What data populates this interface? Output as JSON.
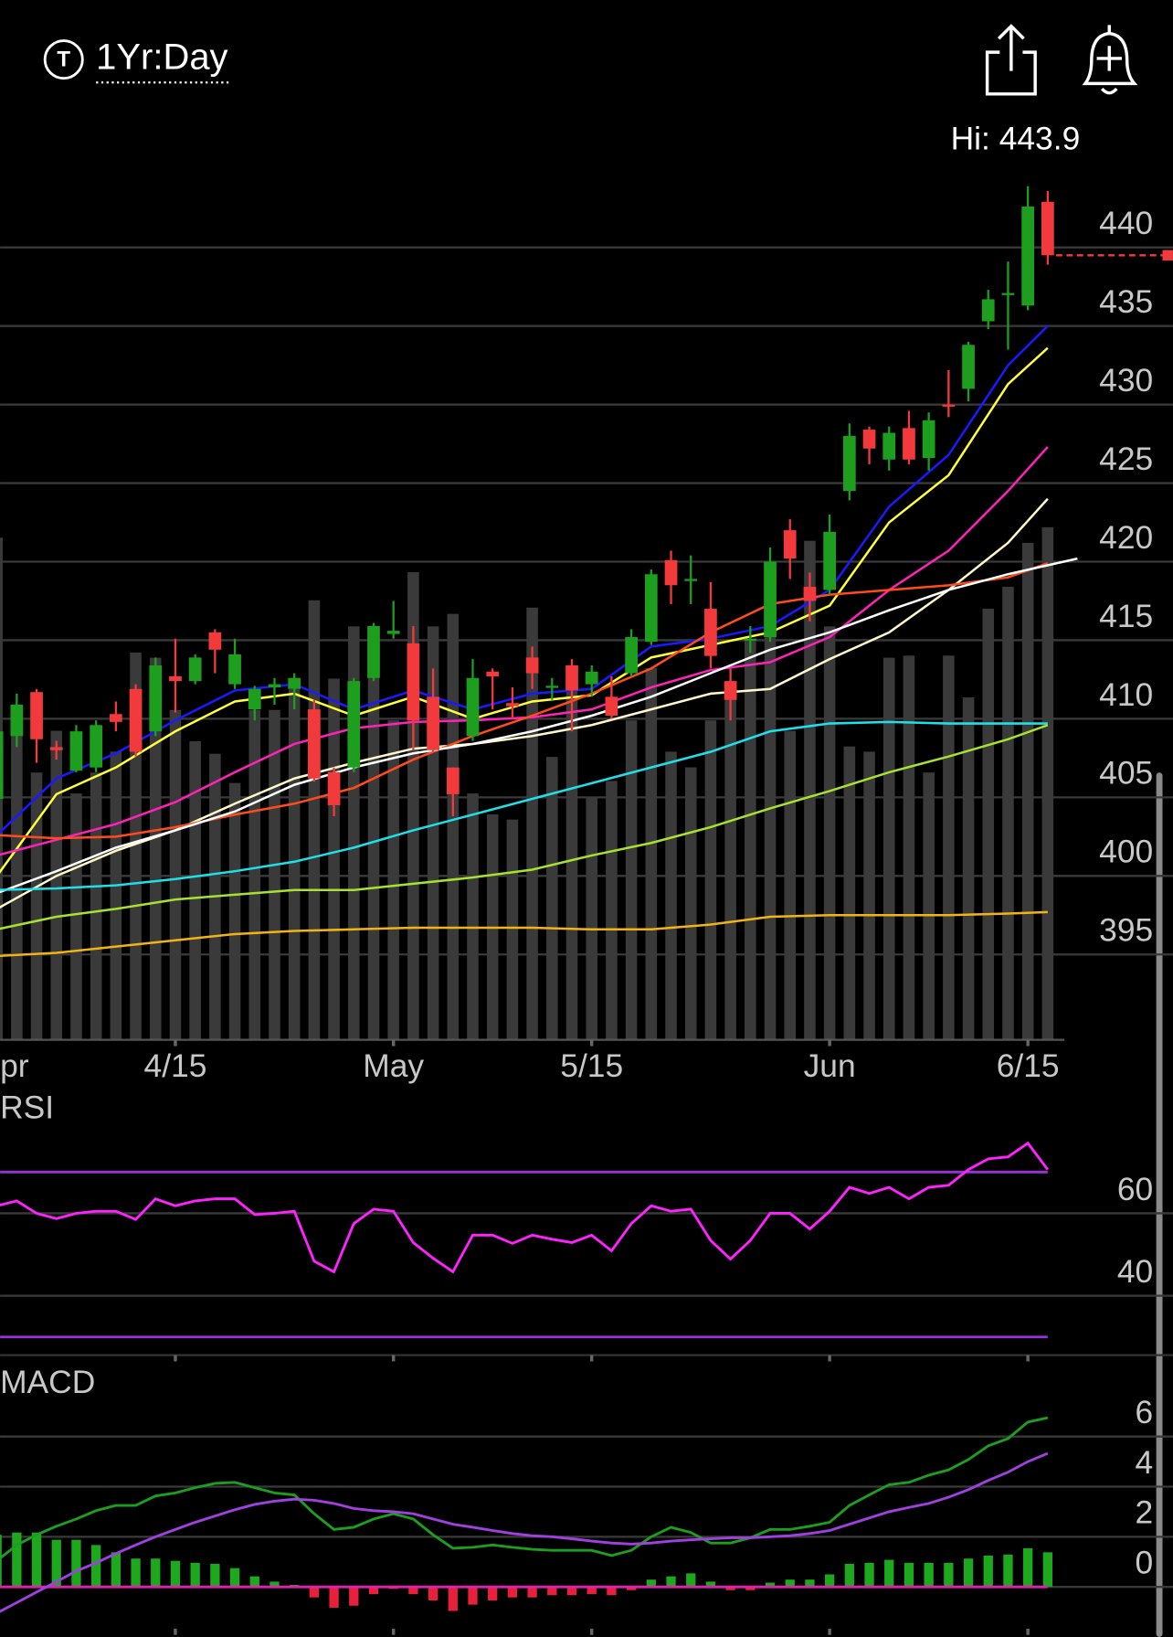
{
  "header": {
    "icon": "T",
    "timeframe": "1Yr:Day"
  },
  "chart_data": [
    {
      "type": "candlestick",
      "annotation": "Hi: 443.9",
      "categories": [
        "pr",
        null,
        null,
        null,
        null,
        null,
        null,
        null,
        null,
        "4/15",
        null,
        null,
        null,
        null,
        null,
        null,
        null,
        null,
        null,
        null,
        "May",
        null,
        null,
        null,
        null,
        null,
        null,
        null,
        null,
        null,
        "5/15",
        null,
        null,
        null,
        null,
        null,
        null,
        null,
        null,
        null,
        null,
        null,
        "Jun",
        null,
        null,
        null,
        null,
        null,
        null,
        null,
        null,
        null,
        "6/15",
        null
      ],
      "open": [
        404.9,
        408.9,
        411.7,
        408.2,
        406.7,
        406.9,
        410.3,
        411.9,
        409.2,
        412.7,
        412.4,
        415.5,
        412.2,
        410.6,
        412.0,
        411.9,
        410.6,
        406.6,
        406.9,
        412.6,
        415.4,
        414.8,
        411.4,
        406.9,
        408.9,
        413.0,
        411.0,
        413.9,
        412.0,
        413.4,
        412.2,
        411.4,
        412.9,
        414.9,
        420.1,
        418.8,
        417.0,
        412.4,
        415.0,
        415.2,
        422.0,
        418.4,
        418.2,
        424.5,
        428.4,
        426.5,
        428.5,
        426.6,
        430.0,
        431.0,
        435.3,
        437.0,
        436.3,
        442.9
      ],
      "high": [
        409.6,
        411.6,
        411.9,
        408.6,
        409.6,
        409.9,
        411.1,
        412.2,
        413.9,
        415.1,
        414.1,
        415.7,
        415.1,
        412.1,
        412.6,
        412.9,
        411.2,
        406.9,
        412.6,
        416.1,
        417.5,
        415.9,
        413.2,
        406.9,
        413.8,
        413.2,
        412.0,
        414.6,
        412.6,
        413.8,
        413.4,
        412.7,
        415.7,
        419.5,
        420.7,
        420.4,
        418.7,
        413.2,
        415.9,
        420.9,
        422.7,
        419.3,
        423.0,
        428.8,
        428.6,
        428.6,
        429.6,
        429.5,
        432.2,
        434.0,
        437.3,
        439.1,
        443.9,
        443.6
      ],
      "low": [
        404.5,
        408.2,
        407.2,
        407.4,
        406.6,
        406.6,
        409.2,
        407.6,
        408.9,
        410.4,
        412.2,
        412.9,
        411.9,
        409.9,
        410.9,
        410.6,
        406.0,
        403.8,
        406.6,
        412.4,
        415.1,
        408.0,
        407.9,
        403.8,
        408.6,
        410.6,
        410.0,
        411.9,
        411.2,
        409.2,
        411.4,
        410.0,
        412.7,
        414.7,
        417.3,
        417.3,
        413.2,
        409.9,
        414.2,
        414.9,
        418.9,
        416.2,
        417.9,
        423.9,
        426.2,
        425.8,
        426.2,
        425.8,
        429.2,
        430.2,
        434.8,
        433.5,
        436.0,
        438.9
      ],
      "close": [
        409.2,
        410.9,
        408.7,
        408.0,
        409.2,
        409.6,
        409.8,
        407.9,
        413.4,
        412.4,
        413.9,
        414.4,
        414.1,
        411.9,
        412.2,
        412.6,
        406.2,
        404.5,
        412.4,
        415.9,
        415.6,
        409.9,
        408.0,
        405.2,
        412.6,
        412.7,
        410.8,
        412.9,
        412.1,
        411.8,
        413.0,
        410.2,
        415.2,
        419.2,
        418.5,
        418.9,
        414.0,
        411.2,
        415.1,
        420.0,
        420.2,
        417.5,
        421.9,
        428.0,
        427.2,
        428.2,
        426.5,
        429.0,
        429.9,
        433.8,
        436.7,
        437.1,
        442.6,
        439.5
      ],
      "up_color": "#1e9e1e",
      "down_color": "#f23a3c",
      "volume": [
        481,
        296,
        256,
        296,
        236,
        256,
        276,
        371,
        366,
        316,
        286,
        274,
        246,
        316,
        316,
        336,
        421,
        346,
        396,
        396,
        306,
        448,
        396,
        408,
        236,
        216,
        211,
        414,
        271,
        356,
        233,
        248,
        306,
        356,
        276,
        261,
        306,
        336,
        384,
        396,
        296,
        478,
        396,
        281,
        276,
        366,
        368,
        256,
        368,
        328,
        413,
        434,
        476,
        491
      ],
      "volume_ylim": [
        0,
        500
      ],
      "volume_color": "#3a3a3a",
      "ylim": [
        389.6,
        446.0
      ],
      "yticks": [
        395,
        400,
        405,
        410,
        415,
        420,
        425,
        430,
        435,
        440
      ],
      "grid": true,
      "last_price_line": true,
      "overlays": [
        {
          "color": "#1a1aff",
          "x": [
            0,
            3,
            6,
            9,
            12,
            15,
            18,
            21,
            24,
            27,
            30,
            33,
            36,
            39,
            42,
            45,
            48,
            51,
            53
          ],
          "values": [
            402.6,
            406.2,
            407.8,
            409.9,
            411.8,
            412.2,
            410.6,
            411.8,
            410.6,
            411.6,
            411.9,
            414.6,
            415.1,
            415.9,
            418.2,
            423.5,
            426.8,
            432.5,
            435.0
          ]
        },
        {
          "color": "#ffff3c",
          "x": [
            0,
            3,
            6,
            9,
            12,
            15,
            18,
            21,
            24,
            27,
            30,
            33,
            36,
            39,
            42,
            45,
            48,
            51,
            53
          ],
          "values": [
            400.0,
            405.2,
            406.9,
            409.2,
            411.1,
            411.6,
            410.2,
            411.4,
            410.0,
            411.1,
            411.5,
            413.9,
            414.7,
            415.5,
            417.2,
            422.5,
            425.5,
            431.3,
            433.6
          ]
        },
        {
          "color": "#ff22b8",
          "x": [
            0,
            3,
            6,
            9,
            12,
            15,
            18,
            21,
            24,
            27,
            30,
            33,
            36,
            39,
            42,
            45,
            48,
            51,
            53
          ],
          "values": [
            401.3,
            402.3,
            403.3,
            404.7,
            406.6,
            408.4,
            409.4,
            409.8,
            409.9,
            410.1,
            410.6,
            412.0,
            413.1,
            413.6,
            415.2,
            418.2,
            420.7,
            424.5,
            427.3
          ]
        },
        {
          "color": "#fff8c8",
          "x": [
            0,
            3,
            6,
            9,
            12,
            15,
            18,
            21,
            24,
            27,
            30,
            33,
            36,
            39,
            42,
            45,
            48,
            51,
            53
          ],
          "values": [
            397.9,
            400.0,
            401.6,
            402.9,
            404.6,
            406.2,
            407.2,
            408.1,
            408.4,
            408.9,
            409.6,
            410.6,
            411.6,
            411.9,
            413.8,
            415.5,
            418.2,
            421.2,
            424.0
          ]
        },
        {
          "color": "#ff4c1c",
          "x": [
            0,
            3,
            6,
            9,
            12,
            15,
            18,
            21,
            24,
            27,
            30,
            33,
            36,
            39,
            42,
            45,
            48,
            51,
            53
          ],
          "values": [
            402.6,
            402.4,
            402.5,
            403.1,
            403.9,
            404.6,
            405.6,
            407.4,
            408.9,
            410.2,
            411.6,
            413.2,
            415.5,
            417.3,
            417.9,
            418.2,
            418.5,
            419.0,
            419.9
          ]
        },
        {
          "color": "#ffffff",
          "x": [
            0,
            3,
            6,
            9,
            12,
            15,
            18,
            21,
            24,
            27,
            30,
            33,
            36,
            39,
            42,
            45,
            48,
            51,
            54.5
          ],
          "values": [
            398.9,
            400.3,
            401.8,
            402.9,
            404.1,
            405.8,
            406.9,
            407.8,
            408.4,
            409.2,
            410.2,
            411.4,
            412.9,
            414.4,
            415.5,
            416.9,
            418.2,
            419.2,
            420.2
          ]
        },
        {
          "color": "#1ee0e8",
          "x": [
            0,
            3,
            6,
            9,
            12,
            15,
            18,
            21,
            24,
            27,
            30,
            33,
            36,
            39,
            42,
            45,
            48,
            51,
            53
          ],
          "values": [
            399.1,
            399.2,
            399.4,
            399.8,
            400.3,
            400.9,
            401.8,
            402.9,
            403.9,
            404.9,
            405.9,
            406.9,
            407.9,
            409.2,
            409.7,
            409.8,
            409.7,
            409.7,
            409.7
          ]
        },
        {
          "color": "#a8e22e",
          "x": [
            0,
            3,
            6,
            9,
            12,
            15,
            18,
            21,
            24,
            27,
            30,
            33,
            36,
            39,
            42,
            45,
            48,
            51,
            53
          ],
          "values": [
            396.6,
            397.4,
            397.9,
            398.5,
            398.8,
            399.1,
            399.1,
            399.5,
            399.9,
            400.4,
            401.3,
            402.1,
            403.1,
            404.3,
            405.4,
            406.6,
            407.6,
            408.7,
            409.6
          ]
        },
        {
          "color": "#f0b414",
          "x": [
            0,
            3,
            6,
            9,
            12,
            15,
            18,
            21,
            24,
            27,
            30,
            33,
            36,
            39,
            42,
            45,
            48,
            51,
            53
          ],
          "values": [
            394.9,
            395.1,
            395.5,
            395.9,
            396.3,
            396.5,
            396.6,
            396.7,
            396.7,
            396.7,
            396.6,
            396.6,
            396.9,
            397.4,
            397.5,
            397.5,
            397.5,
            397.6,
            397.7
          ]
        }
      ]
    },
    {
      "type": "line",
      "title": "RSI",
      "color": "#ff22ff",
      "values": [
        61.8,
        63.0,
        60.0,
        58.7,
        60.0,
        60.5,
        60.5,
        58.5,
        63.5,
        61.8,
        63.0,
        63.5,
        63.5,
        59.7,
        60.0,
        60.5,
        48.4,
        45.8,
        57.5,
        61.0,
        60.5,
        52.9,
        49.1,
        45.8,
        54.7,
        54.7,
        52.7,
        54.7,
        53.7,
        52.9,
        54.7,
        50.9,
        57.5,
        61.8,
        60.5,
        61.0,
        53.4,
        48.9,
        53.4,
        60.0,
        60.0,
        56.2,
        60.5,
        66.3,
        64.8,
        66.3,
        63.5,
        66.3,
        66.8,
        70.6,
        73.2,
        73.7,
        77.0,
        70.6
      ],
      "levels": [
        70,
        30
      ],
      "level_color": "#9b30d8",
      "ylim": [
        25.6,
        88.4
      ],
      "yticks": [
        40,
        60
      ],
      "grid": true
    },
    {
      "type": "macd",
      "title": "MACD",
      "series": [
        {
          "color": "#1e9e1e",
          "values": [
            1.04,
            1.67,
            2.08,
            2.42,
            2.71,
            3.04,
            3.25,
            3.25,
            3.63,
            3.75,
            3.96,
            4.13,
            4.17,
            3.96,
            3.75,
            3.67,
            2.92,
            2.29,
            2.38,
            2.71,
            2.92,
            2.71,
            2.08,
            1.54,
            1.58,
            1.67,
            1.58,
            1.5,
            1.46,
            1.46,
            1.46,
            1.25,
            1.46,
            2.0,
            2.38,
            2.17,
            1.75,
            1.75,
            1.96,
            2.29,
            2.29,
            2.42,
            2.58,
            3.25,
            3.67,
            4.08,
            4.17,
            4.46,
            4.67,
            5.08,
            5.63,
            5.92,
            6.58,
            6.75
          ]
        },
        {
          "color": "#a040e0",
          "values": [
            -1.04,
            -0.63,
            -0.21,
            0.21,
            0.63,
            0.96,
            1.33,
            1.67,
            2.0,
            2.29,
            2.58,
            2.83,
            3.08,
            3.29,
            3.42,
            3.5,
            3.46,
            3.33,
            3.13,
            3.04,
            3.0,
            2.92,
            2.71,
            2.5,
            2.38,
            2.25,
            2.13,
            2.04,
            2.0,
            1.92,
            1.83,
            1.75,
            1.71,
            1.75,
            1.83,
            1.88,
            1.92,
            1.96,
            1.96,
            2.0,
            2.04,
            2.13,
            2.25,
            2.5,
            2.75,
            3.0,
            3.17,
            3.33,
            3.58,
            3.88,
            4.25,
            4.58,
            5.0,
            5.33
          ]
        }
      ],
      "histogram": {
        "up_color": "#1ea81e",
        "down_color": "#e8203c",
        "zero_color": "#e020b0",
        "values": [
          2.08,
          2.17,
          2.17,
          1.88,
          1.88,
          1.67,
          1.38,
          1.13,
          1.13,
          1.04,
          0.96,
          0.92,
          0.75,
          0.42,
          0.21,
          0.08,
          -0.42,
          -0.83,
          -0.75,
          -0.29,
          -0.08,
          -0.29,
          -0.54,
          -0.96,
          -0.71,
          -0.54,
          -0.42,
          -0.42,
          -0.33,
          -0.33,
          -0.29,
          -0.33,
          -0.13,
          0.29,
          0.42,
          0.54,
          0.21,
          -0.13,
          -0.13,
          0.17,
          0.29,
          0.29,
          0.5,
          0.92,
          0.96,
          1.08,
          0.96,
          0.96,
          0.96,
          1.13,
          1.25,
          1.29,
          1.54,
          1.38
        ]
      },
      "ylim": [
        -2.0,
        8.75
      ],
      "yticks": [
        0,
        2,
        4,
        6
      ],
      "grid": true
    }
  ]
}
